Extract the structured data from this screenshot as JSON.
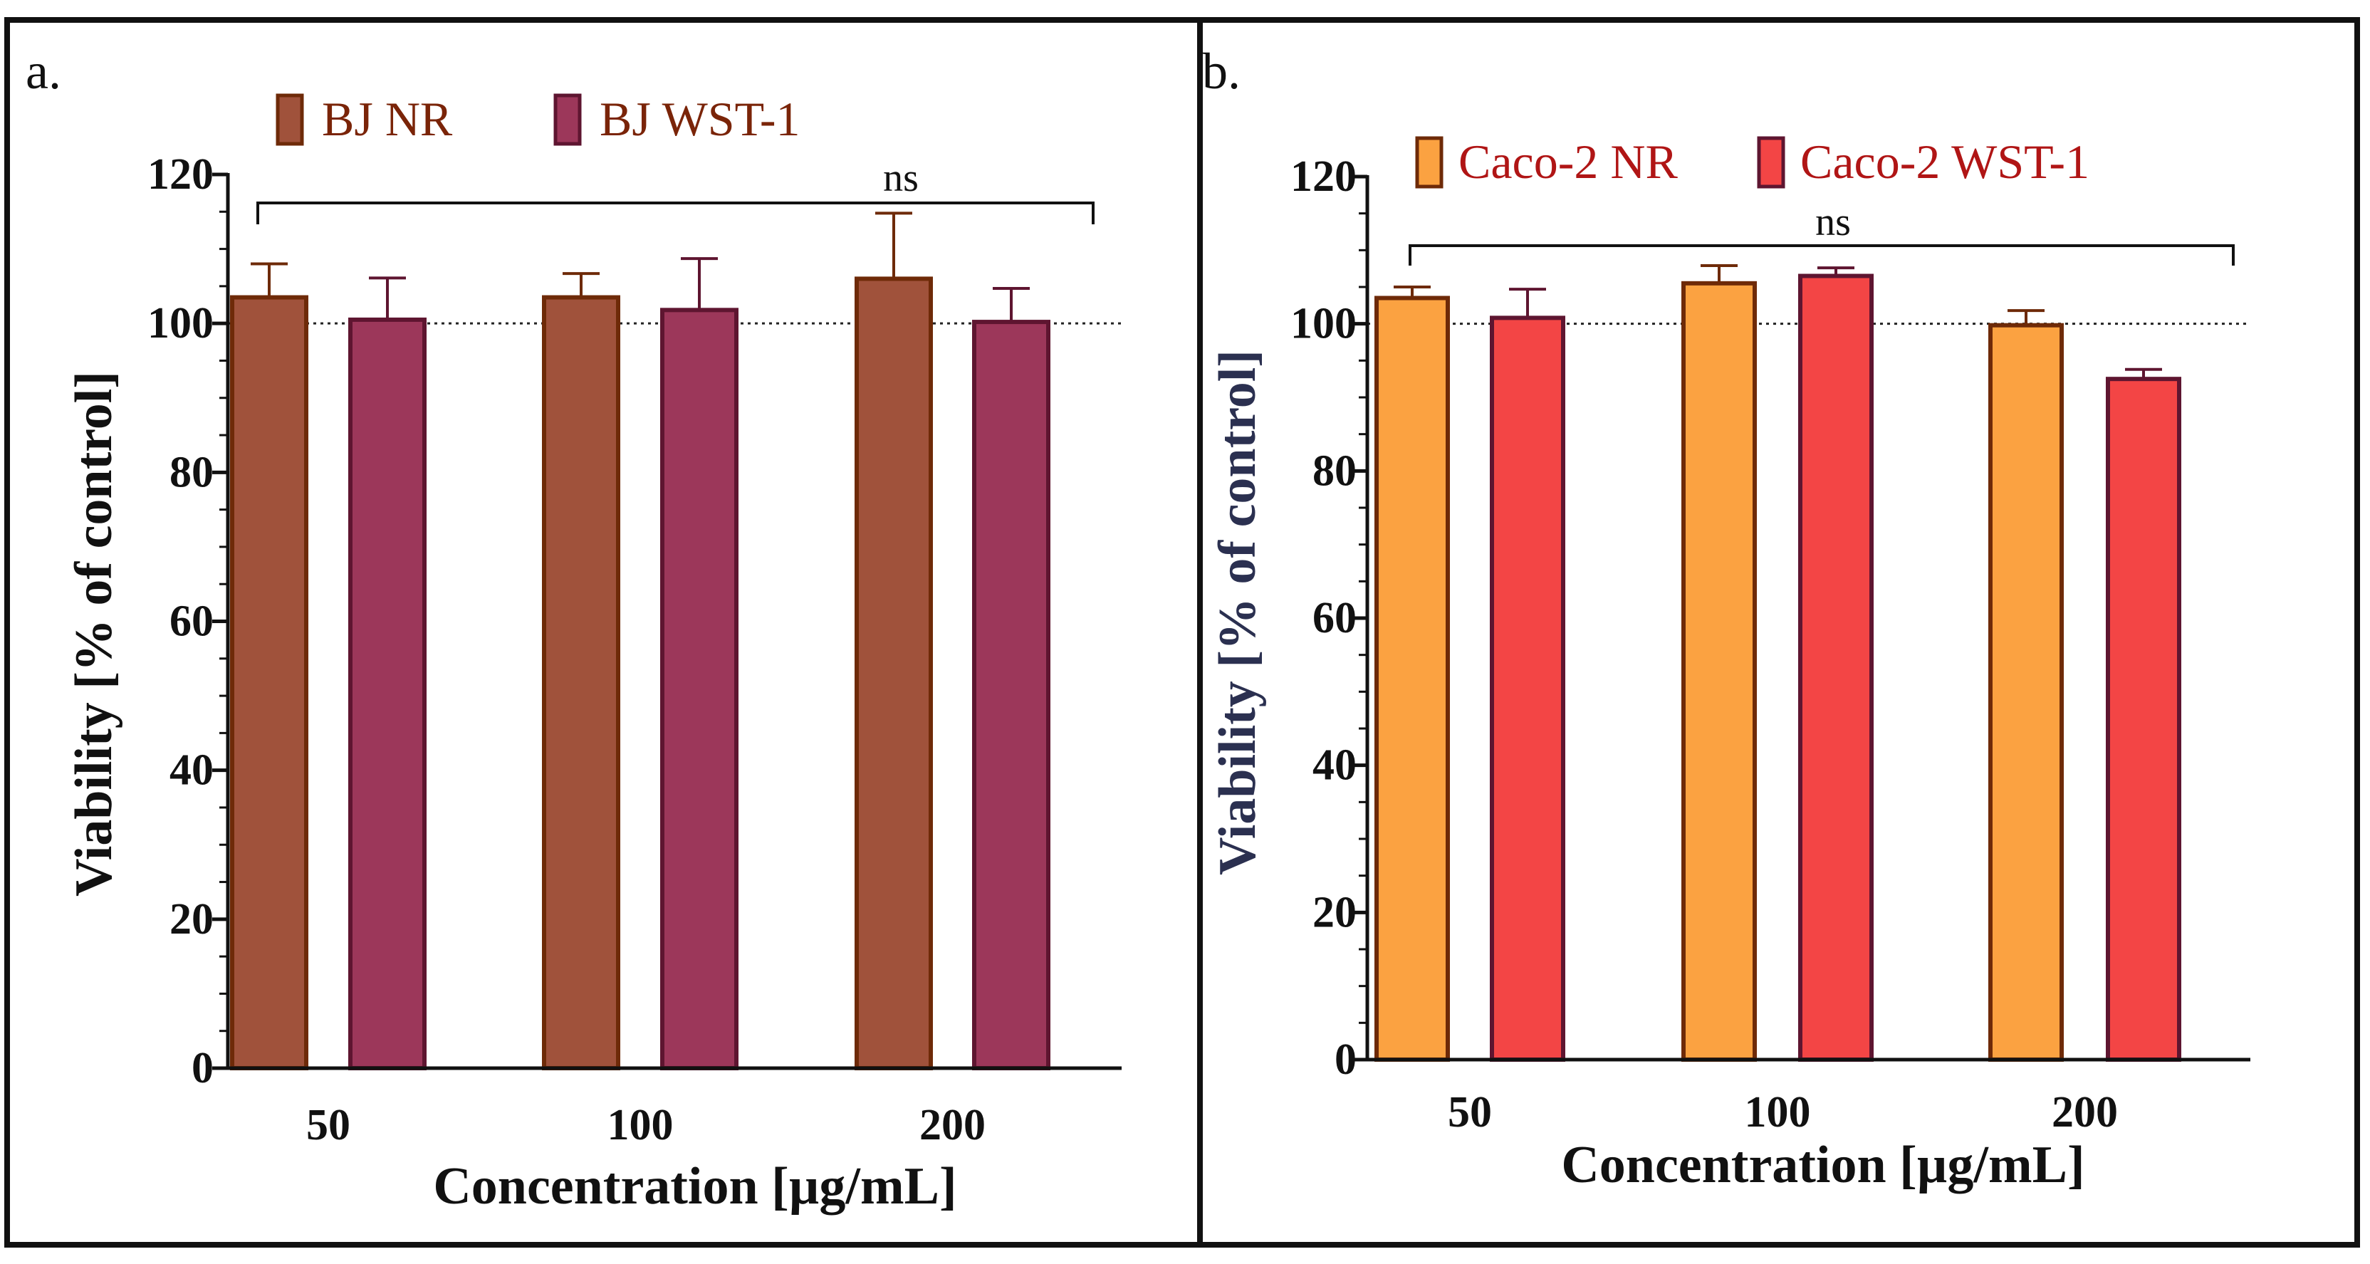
{
  "figure": {
    "frame_color": "#111111"
  },
  "chart_data": [
    {
      "type": "bar",
      "panel_label": "a.",
      "title": "",
      "xlabel": "Concentration [µg/mL]",
      "ylabel": "Viability [% of control]",
      "ylabel_color": "#111111",
      "ylim": [
        0,
        120
      ],
      "yticks": [
        "0",
        "20",
        "40",
        "60",
        "80",
        "100",
        "120"
      ],
      "reference_line": 100,
      "categories": [
        "50",
        "100",
        "200"
      ],
      "legend_position": "top-left",
      "legend_text_color": "#7a2408",
      "significance": {
        "label": "ns"
      },
      "series": [
        {
          "name": "BJ NR",
          "values": [
            103.5,
            103.5,
            106
          ],
          "errors": [
            4.5,
            3.2,
            8.8
          ],
          "color": "#a0523b",
          "edge": "#6e2a08"
        },
        {
          "name": "BJ WST-1",
          "values": [
            100.5,
            101.8,
            100.2
          ],
          "errors": [
            5.6,
            6.9,
            4.5
          ],
          "color": "#9c375a",
          "edge": "#5e1530"
        }
      ]
    },
    {
      "type": "bar",
      "panel_label": "b.",
      "title": "",
      "xlabel": "Concentration [µg/mL]",
      "ylabel": "Viability [% of control]",
      "ylabel_color": "#2b3050",
      "ylim": [
        0,
        120
      ],
      "yticks": [
        "0",
        "20",
        "40",
        "60",
        "80",
        "100",
        "120"
      ],
      "reference_line": 100,
      "categories": [
        "50",
        "100",
        "200"
      ],
      "legend_position": "top-left",
      "legend_text_color": "#b01515",
      "significance": {
        "label": "ns"
      },
      "series": [
        {
          "name": "Caco-2 NR",
          "values": [
            103.5,
            105.5,
            99.8
          ],
          "errors": [
            1.5,
            2.4,
            2
          ],
          "color": "#fba241",
          "edge": "#6e2a08"
        },
        {
          "name": "Caco-2 WST-1",
          "values": [
            100.8,
            106.5,
            92.5
          ],
          "errors": [
            3.9,
            1.1,
            1.3
          ],
          "color": "#f34545",
          "edge": "#5e1530"
        }
      ]
    }
  ]
}
